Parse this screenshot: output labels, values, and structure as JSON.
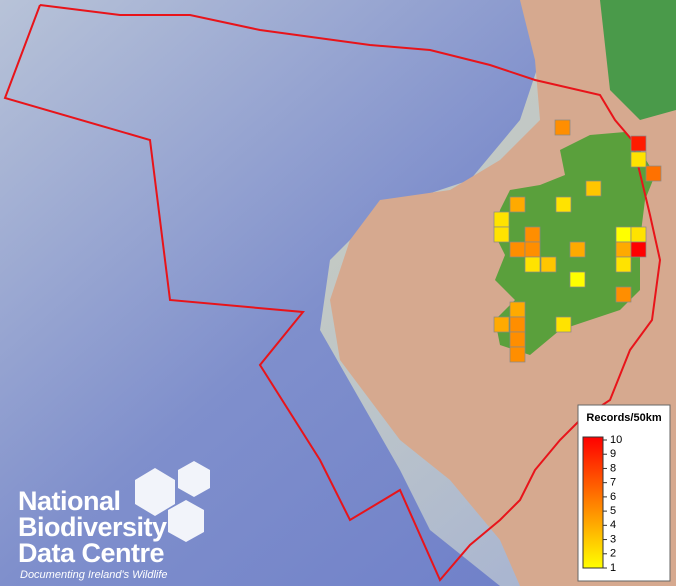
{
  "legend": {
    "title": "Records/50km",
    "ticks": [
      1,
      2,
      3,
      4,
      5,
      6,
      7,
      8,
      9,
      10
    ],
    "min_color": "#ffff00",
    "max_color": "#ff0000"
  },
  "records": {
    "values": [
      5,
      9,
      2,
      6,
      3,
      4,
      2,
      2,
      2,
      5,
      1,
      2,
      5,
      5,
      4,
      4,
      10,
      2,
      3,
      2,
      1,
      5,
      4,
      4,
      5,
      2,
      5,
      5
    ]
  },
  "logo": {
    "line1": "National",
    "line2": "Biodiversity",
    "line3": "Data Centre",
    "tagline": "Documenting Ireland's Wildlife"
  }
}
